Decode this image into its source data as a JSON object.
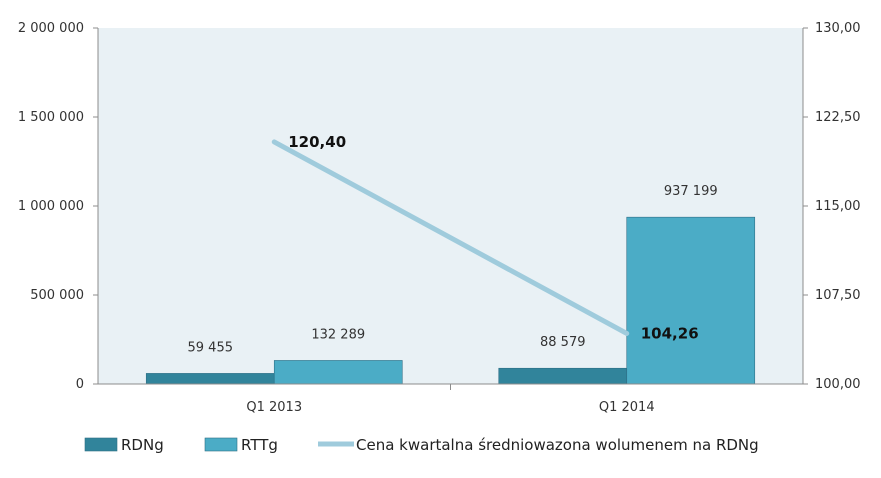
{
  "chart_data": {
    "type": "bar",
    "categories": [
      "Q1 2013",
      "Q1 2014"
    ],
    "series": [
      {
        "name": "RDNg",
        "kind": "bar",
        "axis": "left",
        "color": "#31849b",
        "values": [
          59455,
          88579
        ],
        "labels": [
          "59 455",
          "88 579"
        ]
      },
      {
        "name": "RTTg",
        "kind": "bar",
        "axis": "left",
        "color": "#4bacc6",
        "values": [
          132289,
          937199
        ],
        "labels": [
          "132 289",
          "937 199"
        ]
      },
      {
        "name": "Cena kwartalna średniowazona wolumenem na RDNg",
        "kind": "line",
        "axis": "right",
        "color": "#9fcbdc",
        "values": [
          120.4,
          104.26
        ],
        "labels": [
          "120,40",
          "104,26"
        ]
      }
    ],
    "ylim": [
      0,
      2000000
    ],
    "y2lim": [
      100,
      130
    ],
    "yticks": [
      0,
      500000,
      1000000,
      1500000,
      2000000
    ],
    "yticks_labels": [
      "0",
      "500 000",
      "1 000 000",
      "1 500 000",
      "2 000 000"
    ],
    "y2ticks": [
      100,
      107.5,
      115,
      122.5,
      130
    ],
    "y2ticks_labels": [
      "100,00",
      "107,50",
      "115,00",
      "122,50",
      "130,00"
    ],
    "plot_bg": "#e9f1f5",
    "legend_position": "bottom",
    "grid": false
  }
}
